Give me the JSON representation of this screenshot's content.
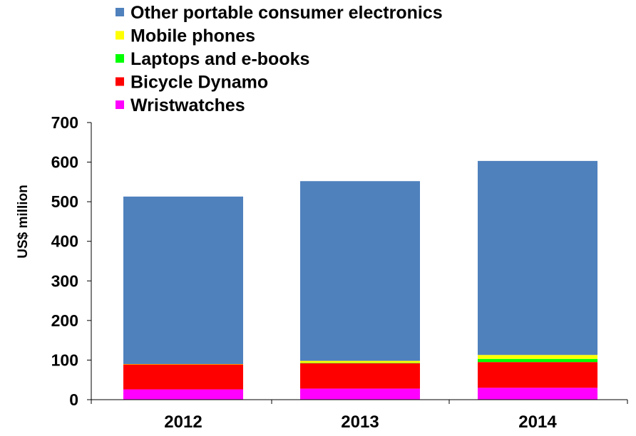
{
  "chart_data": {
    "type": "bar",
    "stacked": true,
    "categories": [
      "2012",
      "2013",
      "2014"
    ],
    "series": [
      {
        "name": "Wristwatches",
        "color": "#FF00FF",
        "values": [
          26,
          28,
          30
        ]
      },
      {
        "name": "Bicycle Dynamo",
        "color": "#FF0000",
        "values": [
          63,
          64,
          65
        ]
      },
      {
        "name": "Laptops and e-books",
        "color": "#00FF00",
        "values": [
          0,
          1,
          8
        ]
      },
      {
        "name": "Mobile phones",
        "color": "#FFFF00",
        "values": [
          1,
          5,
          10
        ]
      },
      {
        "name": "Other portable consumer electronics",
        "color": "#4F81BD",
        "values": [
          423,
          454,
          490
        ]
      }
    ],
    "legend_order": [
      "Other portable consumer electronics",
      "Mobile phones",
      "Laptops and e-books",
      "Bicycle Dynamo",
      "Wristwatches"
    ],
    "title": "",
    "xlabel": "",
    "ylabel": "US$ million",
    "ylim": [
      0,
      700
    ],
    "yticks": [
      0,
      100,
      200,
      300,
      400,
      500,
      600,
      700
    ],
    "grid": false,
    "legend_position": "top-left"
  }
}
